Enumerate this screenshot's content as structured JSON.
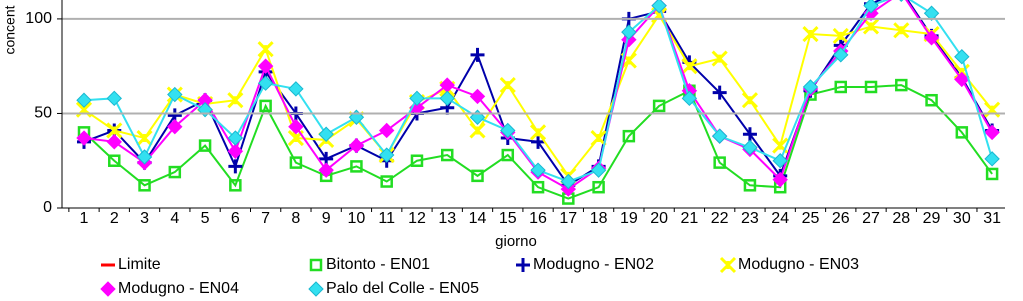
{
  "chart_data": {
    "type": "line",
    "y_label": "concent",
    "x_label": "giorno",
    "categories": [
      "1",
      "2",
      "3",
      "4",
      "5",
      "6",
      "7",
      "8",
      "9",
      "10",
      "11",
      "12",
      "13",
      "14",
      "15",
      "16",
      "17",
      "18",
      "19",
      "20",
      "21",
      "22",
      "23",
      "24",
      "25",
      "26",
      "27",
      "28",
      "29",
      "30",
      "31"
    ],
    "ylim": [
      0,
      110
    ],
    "yticks": [
      0,
      50,
      100
    ],
    "grid": true,
    "series": [
      {
        "name": "Limite",
        "color": "#ff0000",
        "marker": "line",
        "values": [
          null,
          null,
          null,
          null,
          null,
          null,
          null,
          null,
          null,
          null,
          null,
          null,
          null,
          null,
          null,
          null,
          null,
          null,
          null,
          null,
          null,
          null,
          null,
          null,
          null,
          null,
          null,
          null,
          null,
          null,
          null
        ]
      },
      {
        "name": "Bitonto - EN01",
        "color": "#22dd22",
        "marker": "square",
        "values": [
          40,
          25,
          12,
          19,
          33,
          12,
          54,
          24,
          17,
          22,
          14,
          25,
          28,
          17,
          28,
          11,
          5,
          11,
          38,
          54,
          62,
          24,
          12,
          11,
          60,
          64,
          64,
          65,
          57,
          40,
          18
        ]
      },
      {
        "name": "Modugno - EN02",
        "color": "#0000aa",
        "marker": "plus",
        "values": [
          35,
          41,
          24,
          49,
          57,
          22,
          72,
          50,
          26,
          33,
          25,
          50,
          53,
          81,
          37,
          35,
          12,
          22,
          100,
          104,
          77,
          61,
          39,
          17,
          62,
          86,
          108,
          115,
          91,
          69,
          41
        ]
      },
      {
        "name": "Modugno - EN03",
        "color": "#ffff00",
        "marker": "x",
        "values": [
          52,
          41,
          37,
          60,
          55,
          57,
          84,
          37,
          36,
          47,
          28,
          56,
          63,
          41,
          65,
          40,
          17,
          37,
          78,
          102,
          75,
          79,
          57,
          33,
          92,
          91,
          96,
          94,
          92,
          72,
          52
        ]
      },
      {
        "name": "Modugno - EN04",
        "color": "#ff00ff",
        "marker": "diamond",
        "values": [
          37,
          35,
          24,
          43,
          57,
          30,
          75,
          43,
          20,
          33,
          41,
          53,
          65,
          59,
          40,
          19,
          10,
          21,
          89,
          107,
          62,
          38,
          31,
          15,
          63,
          83,
          103,
          114,
          90,
          68,
          40
        ]
      },
      {
        "name": "Palo del Colle - EN05",
        "color": "#33e0f0",
        "marker": "diamond",
        "values": [
          57,
          58,
          27,
          60,
          52,
          37,
          66,
          63,
          39,
          48,
          28,
          58,
          58,
          48,
          41,
          20,
          14,
          20,
          93,
          107,
          58,
          38,
          32,
          25,
          64,
          81,
          107,
          113,
          103,
          80,
          26
        ]
      }
    ]
  }
}
